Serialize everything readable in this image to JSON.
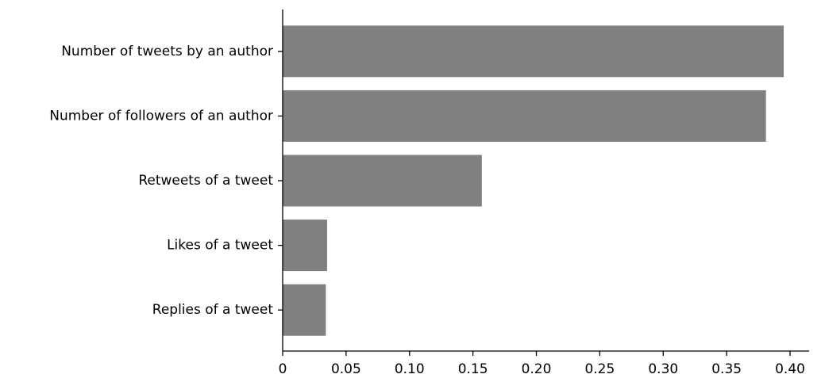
{
  "chart_data": {
    "type": "bar",
    "orientation": "horizontal",
    "categories": [
      "Number of tweets by an author",
      "Number of followers of an author",
      "Retweets of a tweet",
      "Likes of a tweet",
      "Replies of a tweet"
    ],
    "values": [
      0.395,
      0.381,
      0.157,
      0.035,
      0.034
    ],
    "bar_color": "#808080",
    "xlim": [
      0,
      0.415
    ],
    "xticks": [
      0,
      0.05,
      0.1,
      0.15,
      0.2,
      0.25,
      0.3,
      0.35,
      0.4
    ],
    "xtick_labels": [
      "0",
      "0.05",
      "0.10",
      "0.15",
      "0.20",
      "0.25",
      "0.30",
      "0.35",
      "0.40"
    ],
    "title": "",
    "xlabel": "",
    "ylabel": "",
    "grid": false,
    "legend": "none"
  }
}
